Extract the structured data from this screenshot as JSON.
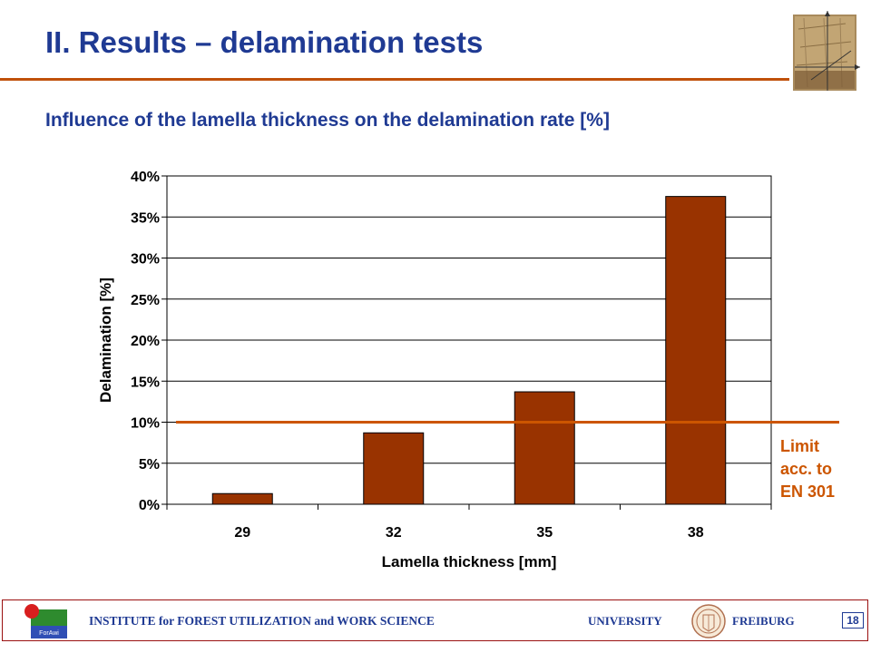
{
  "slide": {
    "title": "II. Results – delamination tests",
    "subtitle": "Influence of the lamella thickness on the delamination rate [%]"
  },
  "chart_data": {
    "type": "bar",
    "categories": [
      "29",
      "32",
      "35",
      "38"
    ],
    "values": [
      1.3,
      8.7,
      13.7,
      37.5
    ],
    "xlabel": "Lamella thickness [mm]",
    "ylabel": "Delamination [%]",
    "ylim": [
      0,
      40
    ],
    "yticks": [
      "0%",
      "5%",
      "10%",
      "15%",
      "20%",
      "25%",
      "30%",
      "35%",
      "40%"
    ],
    "grid": true,
    "bar_color": "#993300",
    "limit": {
      "value": 10,
      "label_lines": [
        "Limit",
        "acc. to",
        "EN 301"
      ],
      "color": "#cc5500"
    }
  },
  "footer": {
    "institute": "INSTITUTE for FOREST UTILIZATION and WORK SCIENCE",
    "university": "UNIVERSITY",
    "city": "FREIBURG",
    "page_number": "18",
    "logo_text": "ForAwi"
  },
  "colors": {
    "title": "#1f3a93",
    "accent_rule": "#c0500a",
    "footer_border": "#9a1010"
  }
}
